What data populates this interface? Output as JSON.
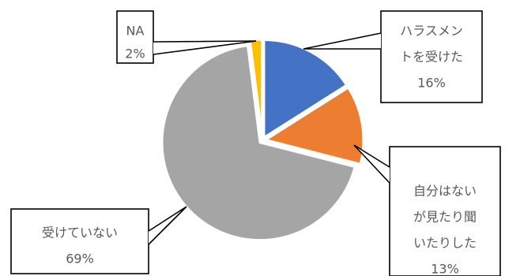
{
  "chart_data": {
    "type": "pie",
    "start_angle_deg": 0,
    "direction": "clockwise",
    "slices": [
      {
        "label_lines": [
          "ハラスメン",
          "トを受けた"
        ],
        "percent_label": "16%",
        "value": 16,
        "color": "#4472C4"
      },
      {
        "label_lines": [
          "自分はない",
          "が見たり聞",
          "いたりした"
        ],
        "percent_label": "13%",
        "value": 13,
        "color": "#ED7D31"
      },
      {
        "label_lines": [
          "受けていない"
        ],
        "percent_label": "69%",
        "value": 69,
        "color": "#A5A5A5"
      },
      {
        "label_lines": [
          "NA"
        ],
        "percent_label": "2%",
        "value": 2,
        "color": "#FFC000"
      }
    ]
  }
}
